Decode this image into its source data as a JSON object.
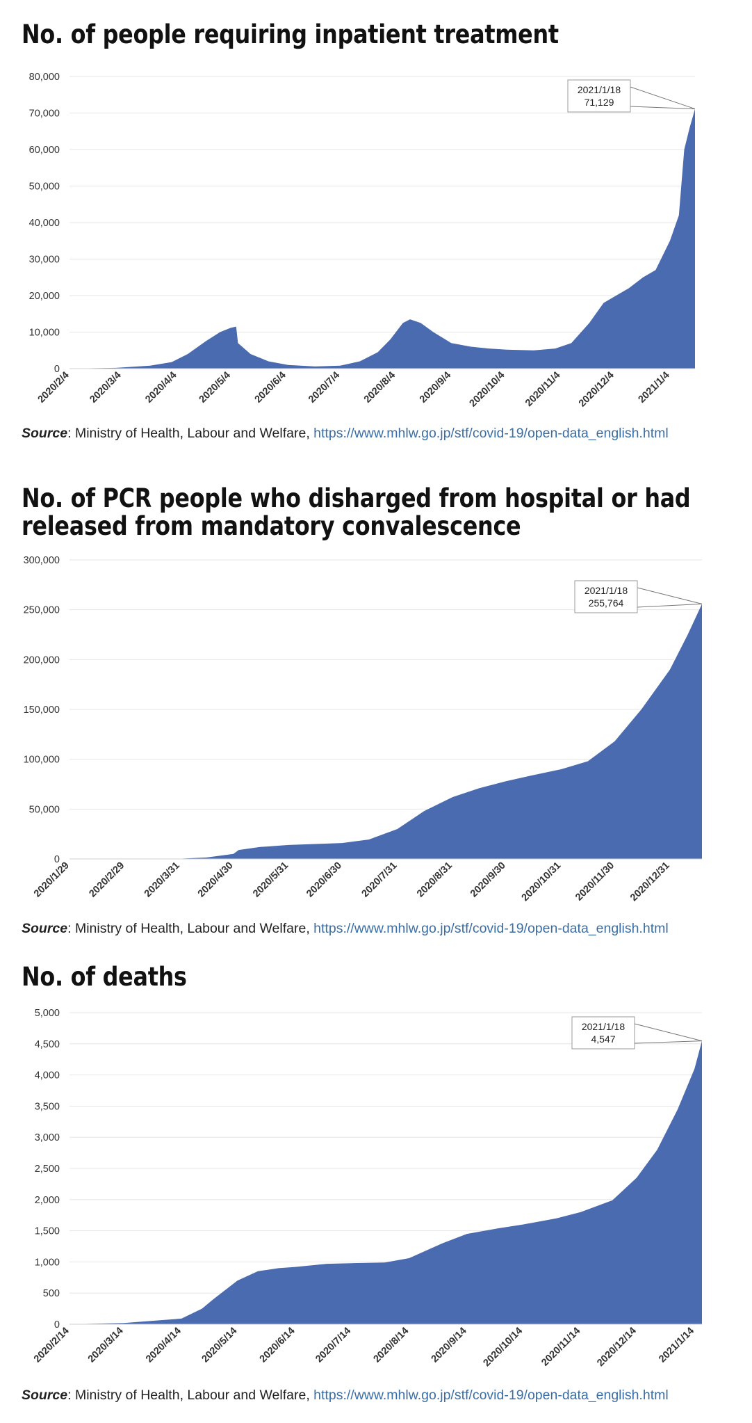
{
  "sections": [
    {
      "title_lines": [
        "No. of people requiring inpatient treatment"
      ],
      "source": {
        "label": "Source",
        "org": ": Ministry of Health, Labour and Welfare, ",
        "url": "https://www.mhlw.go.jp/stf/covid-19/open-data_english.html"
      }
    },
    {
      "title_lines": [
        "No. of PCR people who disharged from hospital or had",
        "released from mandatory convalescence"
      ],
      "source": {
        "label": "Source",
        "org": ": Ministry of Health, Labour and Welfare, ",
        "url": "https://www.mhlw.go.jp/stf/covid-19/open-data_english.html"
      }
    },
    {
      "title_lines": [
        "No. of deaths"
      ],
      "source": {
        "label": "Source",
        "org": ": Ministry of Health, Labour and Welfare, ",
        "url": "https://www.mhlw.go.jp/stf/covid-19/open-data_english.html"
      }
    }
  ],
  "colors": {
    "fill": "#4a6bb0",
    "grid": "#e6e6e6",
    "axis_text": "#333333"
  },
  "chart_data": [
    {
      "type": "area",
      "title": "No. of people requiring inpatient treatment",
      "x_ticks": [
        "2020/2/4",
        "2020/3/4",
        "2020/4/4",
        "2020/5/4",
        "2020/6/4",
        "2020/7/4",
        "2020/8/4",
        "2020/9/4",
        "2020/10/4",
        "2020/11/4",
        "2020/12/4",
        "2021/1/4"
      ],
      "x_range": [
        "2020/2/4",
        "2021/1/18"
      ],
      "ylim": [
        0,
        80000
      ],
      "y_ticks": [
        "0",
        "10,000",
        "20,000",
        "30,000",
        "40,000",
        "50,000",
        "60,000",
        "70,000",
        "80,000"
      ],
      "grid": true,
      "annotation": {
        "date": "2021/1/18",
        "value": "71,129"
      },
      "series": [
        {
          "x": [
            "2020/2/4",
            "2020/3/1",
            "2020/3/20",
            "2020/4/1",
            "2020/4/10",
            "2020/4/20",
            "2020/4/28",
            "2020/5/4",
            "2020/5/7",
            "2020/5/8",
            "2020/5/15",
            "2020/5/25",
            "2020/6/5",
            "2020/6/20",
            "2020/7/4",
            "2020/7/15",
            "2020/7/25",
            "2020/8/1",
            "2020/8/8",
            "2020/8/12",
            "2020/8/18",
            "2020/8/25",
            "2020/9/4",
            "2020/9/15",
            "2020/9/25",
            "2020/10/5",
            "2020/10/20",
            "2020/11/1",
            "2020/11/10",
            "2020/11/20",
            "2020/11/28",
            "2020/12/5",
            "2020/12/12",
            "2020/12/20",
            "2020/12/27",
            "2021/1/4",
            "2021/1/9",
            "2021/1/12",
            "2021/1/15",
            "2021/1/18"
          ],
          "y": [
            0,
            200,
            800,
            1800,
            4000,
            7500,
            10000,
            11200,
            11500,
            7000,
            4000,
            2000,
            1000,
            600,
            800,
            2000,
            4500,
            8000,
            12500,
            13500,
            12500,
            10000,
            7000,
            6000,
            5500,
            5200,
            5000,
            5500,
            7000,
            12500,
            18000,
            20000,
            22000,
            25000,
            27000,
            35000,
            42000,
            60000,
            66000,
            71129
          ]
        }
      ]
    },
    {
      "type": "area",
      "title": "No. of PCR people who disharged from hospital or had released from mandatory convalescence",
      "x_ticks": [
        "2020/1/29",
        "2020/2/29",
        "2020/3/31",
        "2020/4/30",
        "2020/5/31",
        "2020/6/30",
        "2020/7/31",
        "2020/8/31",
        "2020/9/30",
        "2020/10/31",
        "2020/11/30",
        "2020/12/31"
      ],
      "x_range": [
        "2020/1/29",
        "2021/1/18"
      ],
      "ylim": [
        0,
        300000
      ],
      "y_ticks": [
        "0",
        "50,000",
        "100,000",
        "150,000",
        "200,000",
        "250,000",
        "300,000"
      ],
      "grid": true,
      "annotation": {
        "date": "2021/1/18",
        "value": "255,764"
      },
      "series": [
        {
          "x": [
            "2020/1/29",
            "2020/3/31",
            "2020/4/15",
            "2020/4/30",
            "2020/5/3",
            "2020/5/15",
            "2020/5/31",
            "2020/6/30",
            "2020/7/15",
            "2020/7/31",
            "2020/8/15",
            "2020/8/31",
            "2020/9/15",
            "2020/9/30",
            "2020/10/15",
            "2020/10/31",
            "2020/11/15",
            "2020/11/30",
            "2020/12/15",
            "2020/12/31",
            "2021/1/10",
            "2021/1/18"
          ],
          "y": [
            0,
            300,
            1500,
            5000,
            9000,
            12000,
            14000,
            16000,
            19500,
            30000,
            48000,
            62000,
            71000,
            78000,
            84000,
            90000,
            98000,
            118000,
            150000,
            190000,
            225000,
            255764
          ]
        }
      ]
    },
    {
      "type": "area",
      "title": "No. of deaths",
      "x_ticks": [
        "2020/2/14",
        "2020/3/14",
        "2020/4/14",
        "2020/5/14",
        "2020/6/14",
        "2020/7/14",
        "2020/8/14",
        "2020/9/14",
        "2020/10/14",
        "2020/11/14",
        "2020/12/14",
        "2021/1/14"
      ],
      "x_range": [
        "2020/2/14",
        "2021/1/18"
      ],
      "ylim": [
        0,
        5000
      ],
      "y_ticks": [
        "0",
        "500",
        "1,000",
        "1,500",
        "2,000",
        "2,500",
        "3,000",
        "3,500",
        "4,000",
        "4,500",
        "5,000"
      ],
      "grid": true,
      "annotation": {
        "date": "2021/1/18",
        "value": "4,547"
      },
      "series": [
        {
          "x": [
            "2020/2/14",
            "2020/3/14",
            "2020/4/14",
            "2020/4/25",
            "2020/5/1",
            "2020/5/14",
            "2020/5/25",
            "2020/6/5",
            "2020/6/14",
            "2020/7/1",
            "2020/7/14",
            "2020/8/1",
            "2020/8/14",
            "2020/9/1",
            "2020/9/14",
            "2020/10/1",
            "2020/10/14",
            "2020/11/1",
            "2020/11/14",
            "2020/12/1",
            "2020/12/14",
            "2020/12/25",
            "2021/1/5",
            "2021/1/14",
            "2021/1/18"
          ],
          "y": [
            0,
            20,
            90,
            250,
            400,
            700,
            850,
            900,
            920,
            970,
            980,
            990,
            1060,
            1300,
            1450,
            1540,
            1600,
            1700,
            1800,
            1990,
            2350,
            2800,
            3450,
            4100,
            4547
          ]
        }
      ]
    }
  ]
}
